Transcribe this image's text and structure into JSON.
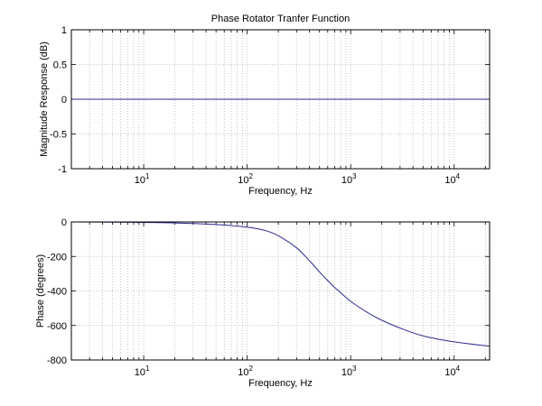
{
  "chart_data": [
    {
      "type": "line",
      "title": "Phase Rotator Tranfer Function",
      "xlabel": "Frequency, Hz",
      "ylabel": "Magnitude Response (dB)",
      "xscale": "log",
      "xlim": [
        2,
        22000
      ],
      "ylim": [
        -1,
        1
      ],
      "grid": true,
      "yticks": [
        -1,
        -0.5,
        0,
        0.5,
        1
      ],
      "ytick_labels": [
        "-1",
        "-0.5",
        "0",
        "0.5",
        "1"
      ],
      "xticks": [
        {
          "value": 10,
          "base": "10",
          "exp": "1"
        },
        {
          "value": 100,
          "base": "10",
          "exp": "2"
        },
        {
          "value": 1000,
          "base": "10",
          "exp": "3"
        },
        {
          "value": 10000,
          "base": "10",
          "exp": "4"
        }
      ],
      "series": [
        {
          "name": "magnitude",
          "color": "#2a2a8f",
          "x": [
            2,
            10,
            100,
            1000,
            10000,
            22000
          ],
          "y": [
            0,
            0,
            0,
            0,
            0,
            0
          ]
        }
      ]
    },
    {
      "type": "line",
      "title": "",
      "xlabel": "Frequency, Hz",
      "ylabel": "Phase (degrees)",
      "xscale": "log",
      "xlim": [
        2,
        22000
      ],
      "ylim": [
        -800,
        0
      ],
      "grid": true,
      "yticks": [
        -800,
        -600,
        -400,
        -200,
        0
      ],
      "ytick_labels": [
        "-800",
        "-600",
        "-400",
        "-200",
        "0"
      ],
      "xticks": [
        {
          "value": 10,
          "base": "10",
          "exp": "1"
        },
        {
          "value": 100,
          "base": "10",
          "exp": "2"
        },
        {
          "value": 1000,
          "base": "10",
          "exp": "3"
        },
        {
          "value": 10000,
          "base": "10",
          "exp": "4"
        }
      ],
      "series": [
        {
          "name": "phase",
          "color": "#2a2a8f",
          "x": [
            2,
            5,
            10,
            20,
            50,
            100,
            150,
            200,
            300,
            400,
            500,
            600,
            700,
            800,
            1000,
            1500,
            2000,
            3000,
            5000,
            10000,
            22000
          ],
          "y": [
            0,
            -1,
            -3,
            -6,
            -15,
            -30,
            -50,
            -80,
            -150,
            -225,
            -290,
            -340,
            -380,
            -410,
            -460,
            -530,
            -570,
            -615,
            -660,
            -695,
            -720
          ]
        }
      ]
    }
  ]
}
